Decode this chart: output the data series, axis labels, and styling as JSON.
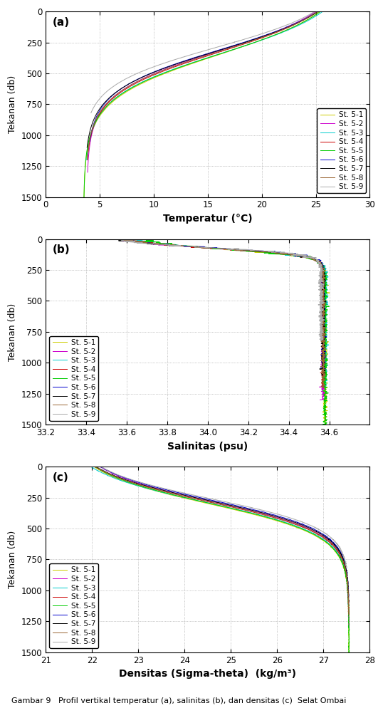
{
  "stations": [
    "St. 5-1",
    "St. 5-2",
    "St. 5-3",
    "St. 5-4",
    "St. 5-5",
    "St. 5-6",
    "St. 5-7",
    "St. 5-8",
    "St. 5-9"
  ],
  "colors": [
    "#cccc00",
    "#cc00cc",
    "#00cccc",
    "#cc0000",
    "#00cc00",
    "#0000cc",
    "#000000",
    "#996633",
    "#aaaaaa"
  ],
  "pressure_max": 1500,
  "temp_xlim": [
    0,
    30
  ],
  "temp_xticks": [
    0,
    5,
    10,
    15,
    20,
    25,
    30
  ],
  "sal_xlim": [
    33.2,
    34.8
  ],
  "sal_xticks": [
    33.2,
    33.4,
    33.6,
    33.8,
    34.0,
    34.2,
    34.4,
    34.6
  ],
  "dens_xlim": [
    21,
    28
  ],
  "dens_xticks": [
    21,
    22,
    23,
    24,
    25,
    26,
    27,
    28
  ],
  "ylabel": "Tekanan (db)",
  "xlabel_a": "Temperatur (°C)",
  "xlabel_b": "Salinitas (psu)",
  "xlabel_c": "Densitas (Sigma-theta)  (kg/m³)",
  "panel_labels": [
    "(a)",
    "(b)",
    "(c)"
  ],
  "caption": "Gambar 9   Profil vertikal temperatur (a), salinitas (b), dan densitas (c)  Selat Ombai",
  "yticks": [
    0,
    250,
    500,
    750,
    1000,
    1250,
    1500
  ]
}
